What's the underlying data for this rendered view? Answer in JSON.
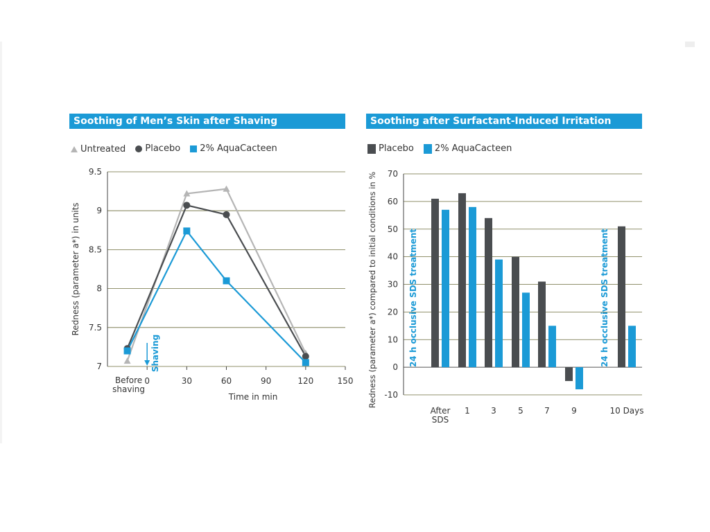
{
  "colors": {
    "title_bg": "#1b9ad6",
    "untreated": "#b5b5b5",
    "placebo": "#4a4d50",
    "aquacacteen": "#1b9ad6",
    "annotation": "#1b9ad6"
  },
  "chart_data": [
    {
      "type": "line",
      "title": "Soothing of Men’s Skin after Shaving",
      "xlabel": "Time in min",
      "ylabel": "Redness (parameter a*) in units",
      "x_ticks": [
        "0",
        "30",
        "60",
        "90",
        "120",
        "150"
      ],
      "x_tick_values": [
        0,
        30,
        60,
        90,
        120,
        150
      ],
      "x_extra_tick": {
        "value": -15,
        "lines": [
          "Before",
          "shaving"
        ]
      },
      "xlim": [
        -30,
        150
      ],
      "y_ticks": [
        "7",
        "7.5",
        "8",
        "8.5",
        "9",
        "9.5"
      ],
      "y_tick_values": [
        7,
        7.5,
        8,
        8.5,
        9,
        9.5
      ],
      "ylim": [
        7,
        9.5
      ],
      "legend": [
        "Untreated",
        "Placebo",
        "2% AquaCacteen"
      ],
      "annotation": {
        "label": "Shaving",
        "x": 0
      },
      "series": [
        {
          "name": "Untreated",
          "marker": "triangle",
          "x": [
            -15,
            30,
            60,
            120
          ],
          "values": [
            7.07,
            9.22,
            9.28,
            7.17
          ]
        },
        {
          "name": "Placebo",
          "marker": "circle",
          "x": [
            -15,
            30,
            60,
            120
          ],
          "values": [
            7.23,
            9.07,
            8.95,
            7.13
          ]
        },
        {
          "name": "2% AquaCacteen",
          "marker": "square",
          "x": [
            -15,
            30,
            60,
            120
          ],
          "values": [
            7.2,
            8.74,
            8.1,
            7.05
          ]
        }
      ]
    },
    {
      "type": "bar",
      "title": "Soothing after Surfactant-Induced Irritation",
      "ylabel": "Redness (parameter a*) compared to initial conditions in %",
      "categories": [
        {
          "lines": [
            "After",
            "SDS"
          ]
        },
        {
          "lines": [
            "1"
          ]
        },
        {
          "lines": [
            "3"
          ]
        },
        {
          "lines": [
            "5"
          ]
        },
        {
          "lines": [
            "7"
          ]
        },
        {
          "lines": [
            "9"
          ]
        },
        {
          "lines": [
            "10 Days"
          ]
        }
      ],
      "y_ticks": [
        "-10",
        "0",
        "10",
        "20",
        "30",
        "40",
        "50",
        "60",
        "70"
      ],
      "y_tick_values": [
        -10,
        0,
        10,
        20,
        30,
        40,
        50,
        60,
        70
      ],
      "ylim": [
        -10,
        70
      ],
      "legend": [
        "Placebo",
        "2% AquaCacteen"
      ],
      "annotations": [
        "24 h occlusive SDS treatment",
        "24 h occlusive SDS treatment"
      ],
      "series": [
        {
          "name": "Placebo",
          "values": [
            61,
            63,
            54,
            40,
            31,
            -5,
            51
          ]
        },
        {
          "name": "2% AquaCacteen",
          "values": [
            57,
            58,
            39,
            27,
            15,
            -8,
            15
          ]
        }
      ]
    }
  ]
}
